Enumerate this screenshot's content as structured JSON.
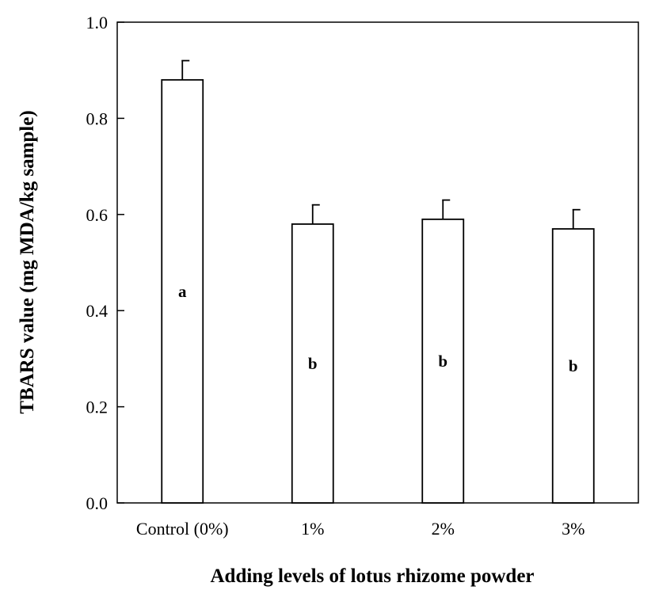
{
  "chart_data": {
    "type": "bar",
    "categories": [
      "Control (0%)",
      "1%",
      "2%",
      "3%"
    ],
    "values": [
      0.88,
      0.58,
      0.59,
      0.57
    ],
    "errors": [
      0.04,
      0.04,
      0.04,
      0.04
    ],
    "significance_labels": [
      "a",
      "b",
      "b",
      "b"
    ],
    "xlabel": "Adding levels of lotus rhizome powder",
    "ylabel": "TBARS value (mg MDA/kg sample)",
    "ylim": [
      0,
      1.0
    ],
    "yticks": [
      "0.0",
      "0.2",
      "0.4",
      "0.6",
      "0.8",
      "1.0"
    ],
    "grid": false,
    "legend": "none",
    "bar_fill": "#ffffff",
    "stroke_color": "#000000"
  }
}
